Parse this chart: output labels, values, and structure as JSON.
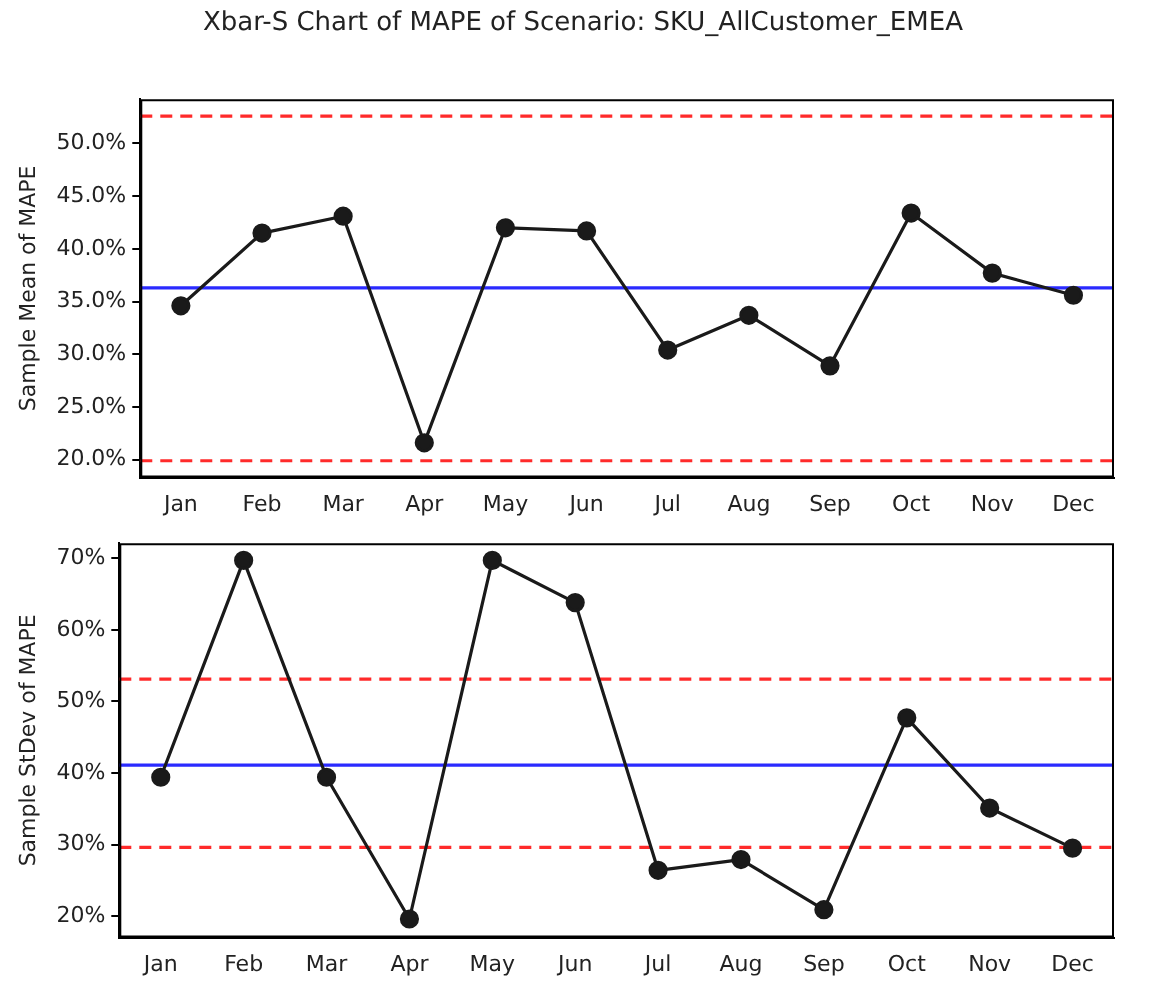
{
  "chart_data": [
    {
      "type": "line",
      "title": "Xbar-S Chart of MAPE of Scenario: SKU_AllCustomer_EMEA",
      "ylabel": "Sample Mean of MAPE",
      "categories": [
        "Jan",
        "Feb",
        "Mar",
        "Apr",
        "May",
        "Jun",
        "Jul",
        "Aug",
        "Sep",
        "Oct",
        "Nov",
        "Dec"
      ],
      "series": [
        {
          "color": "#1a1a1a",
          "values": [
            34.6,
            41.5,
            43.1,
            21.6,
            42.0,
            41.7,
            30.4,
            33.7,
            28.9,
            43.4,
            37.7,
            35.6
          ]
        }
      ],
      "ylim": [
        18.3,
        54.2
      ],
      "yticks": [
        {
          "value": 20,
          "label": "20.0%"
        },
        {
          "value": 25,
          "label": "25.0%"
        },
        {
          "value": 30,
          "label": "30.0%"
        },
        {
          "value": 35,
          "label": "35.0%"
        },
        {
          "value": 40,
          "label": "40.0%"
        },
        {
          "value": 45,
          "label": "45.0%"
        },
        {
          "value": 50,
          "label": "50.0%"
        }
      ],
      "ref_lines": [
        {
          "axis": "y",
          "value": 52.6,
          "color": "#ff2a2a",
          "line_style": "dashed"
        },
        {
          "axis": "y",
          "value": 36.3,
          "color": "#2a2aff",
          "line_style": "solid"
        },
        {
          "axis": "y",
          "value": 19.9,
          "color": "#ff2a2a",
          "line_style": "dashed"
        }
      ],
      "marker": "circle",
      "line_style": "solid",
      "grid": false,
      "legend": false
    },
    {
      "type": "line",
      "ylabel": "Sample StDev of MAPE",
      "categories": [
        "Jan",
        "Feb",
        "Mar",
        "Apr",
        "May",
        "Jun",
        "Jul",
        "Aug",
        "Sep",
        "Oct",
        "Nov",
        "Dec"
      ],
      "series": [
        {
          "color": "#1a1a1a",
          "values": [
            39.4,
            69.7,
            39.4,
            19.6,
            69.7,
            63.8,
            26.4,
            27.9,
            20.9,
            47.7,
            35.1,
            29.5
          ]
        }
      ],
      "ylim": [
        17.0,
        72.1
      ],
      "yticks": [
        {
          "value": 20,
          "label": "20%"
        },
        {
          "value": 30,
          "label": "30%"
        },
        {
          "value": 40,
          "label": "40%"
        },
        {
          "value": 50,
          "label": "50%"
        },
        {
          "value": 60,
          "label": "60%"
        },
        {
          "value": 70,
          "label": "70%"
        }
      ],
      "ref_lines": [
        {
          "axis": "y",
          "value": 53.1,
          "color": "#ff2a2a",
          "line_style": "dashed"
        },
        {
          "axis": "y",
          "value": 41.1,
          "color": "#2a2aff",
          "line_style": "solid"
        },
        {
          "axis": "y",
          "value": 29.6,
          "color": "#ff2a2a",
          "line_style": "dashed"
        }
      ],
      "marker": "circle",
      "line_style": "solid",
      "grid": false,
      "legend": false
    }
  ]
}
